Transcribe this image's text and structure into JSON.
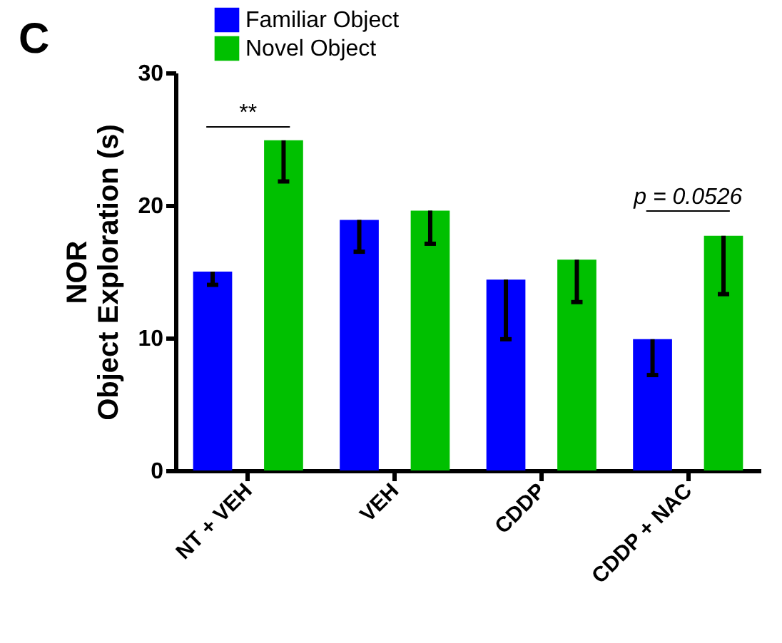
{
  "chart_data": {
    "type": "bar",
    "categories": [
      "NT + VEH",
      "VEH",
      "CDDP",
      "CDDP + NAC"
    ],
    "ylabel": "NOR\nObject Exploration (s)",
    "ylim": [
      0,
      30
    ],
    "yticks": [
      0,
      10,
      20,
      30
    ],
    "grid": false,
    "legend": "top left",
    "series": [
      {
        "name": "Familiar Object",
        "color": "#0000ff",
        "values": [
          15.0,
          18.9,
          14.4,
          9.9
        ],
        "errors": [
          [
            14.0,
            15.0
          ],
          [
            16.5,
            18.9
          ],
          [
            9.9,
            14.4
          ],
          [
            7.2,
            9.9
          ]
        ]
      },
      {
        "name": "Novel Object",
        "color": "#00c000",
        "values": [
          24.9,
          19.6,
          15.9,
          17.7
        ],
        "errors": [
          [
            21.8,
            24.9
          ],
          [
            17.1,
            19.6
          ],
          [
            12.7,
            15.9
          ],
          [
            13.3,
            17.7
          ]
        ]
      }
    ],
    "annotations": [
      "C",
      "**",
      "p = 0.0526"
    ]
  }
}
